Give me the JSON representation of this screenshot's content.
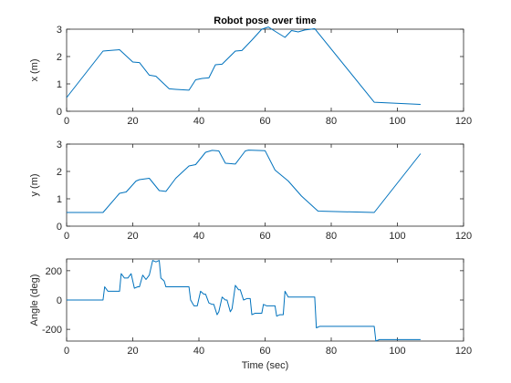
{
  "chart_data": [
    {
      "type": "line",
      "title": "Robot pose over time",
      "xlabel": "",
      "ylabel": "x (m)",
      "xlim": [
        0,
        120
      ],
      "ylim": [
        0,
        3
      ],
      "xticks": [
        0,
        20,
        40,
        60,
        80,
        100,
        120
      ],
      "yticks": [
        0,
        1,
        2,
        3
      ],
      "grid": false,
      "color": "#0072BD",
      "series": [
        {
          "x": [
            0,
            11,
            13,
            16,
            20,
            22,
            25,
            27,
            31,
            33,
            37,
            39,
            41,
            43,
            45,
            47,
            51,
            53,
            56,
            59,
            61,
            62,
            64,
            66,
            68,
            70,
            72,
            74,
            75,
            93,
            107
          ],
          "y": [
            0.5,
            2.2,
            2.22,
            2.25,
            1.8,
            1.78,
            1.32,
            1.28,
            0.82,
            0.8,
            0.77,
            1.15,
            1.2,
            1.22,
            1.7,
            1.72,
            2.2,
            2.22,
            2.6,
            3.0,
            3.08,
            3.0,
            2.85,
            2.7,
            2.95,
            2.9,
            2.97,
            3.0,
            3.02,
            0.33,
            0.25
          ]
        }
      ]
    },
    {
      "type": "line",
      "title": "",
      "xlabel": "",
      "ylabel": "y (m)",
      "xlim": [
        0,
        120
      ],
      "ylim": [
        0,
        3
      ],
      "xticks": [
        0,
        20,
        40,
        60,
        80,
        100,
        120
      ],
      "yticks": [
        0,
        1,
        2,
        3
      ],
      "grid": false,
      "color": "#0072BD",
      "series": [
        {
          "x": [
            0,
            11,
            16,
            18,
            21,
            22,
            25,
            28,
            30,
            33,
            37,
            39,
            42,
            44,
            46,
            48,
            51,
            54,
            55,
            60,
            63,
            67,
            71,
            76,
            93,
            107
          ],
          "y": [
            0.5,
            0.5,
            1.2,
            1.25,
            1.65,
            1.7,
            1.75,
            1.3,
            1.27,
            1.75,
            2.2,
            2.25,
            2.7,
            2.77,
            2.75,
            2.3,
            2.27,
            2.75,
            2.78,
            2.76,
            2.05,
            1.65,
            1.1,
            0.55,
            0.5,
            2.65
          ]
        }
      ]
    },
    {
      "type": "line",
      "title": "",
      "xlabel": "Time (sec)",
      "ylabel": "Angle (deg)",
      "xlim": [
        0,
        120
      ],
      "ylim": [
        -280,
        280
      ],
      "xticks": [
        0,
        20,
        40,
        60,
        80,
        100,
        120
      ],
      "yticks": [
        -200,
        0,
        200
      ],
      "grid": false,
      "color": "#0072BD",
      "series": [
        {
          "x": [
            0,
            11,
            11.5,
            12.5,
            16,
            16.5,
            17.5,
            18.5,
            19.5,
            20.5,
            21.5,
            22,
            23,
            24,
            25,
            26,
            27,
            28,
            28.5,
            29.5,
            30,
            31,
            37,
            37.5,
            38.5,
            39.5,
            40.5,
            41.5,
            42,
            43,
            44,
            44.5,
            45.5,
            46,
            47,
            48,
            48.5,
            49.5,
            50,
            51,
            52,
            52.5,
            53.5,
            54.5,
            55.5,
            56,
            57,
            59,
            59.5,
            60.5,
            63,
            63.5,
            64.5,
            65.5,
            66,
            67,
            68,
            75,
            75.5,
            76.5,
            93,
            93.5,
            94.5,
            107
          ],
          "y": [
            0,
            0,
            90,
            60,
            60,
            180,
            150,
            150,
            180,
            80,
            90,
            90,
            170,
            140,
            170,
            270,
            260,
            270,
            150,
            130,
            90,
            90,
            90,
            0,
            -40,
            -40,
            60,
            40,
            40,
            -20,
            -30,
            -30,
            -100,
            -80,
            20,
            0,
            0,
            -80,
            -60,
            100,
            70,
            70,
            0,
            10,
            10,
            -100,
            -90,
            -90,
            -30,
            -40,
            -40,
            -110,
            -100,
            -100,
            60,
            20,
            20,
            20,
            -190,
            -180,
            -180,
            -280,
            -270,
            -270
          ]
        }
      ]
    }
  ]
}
